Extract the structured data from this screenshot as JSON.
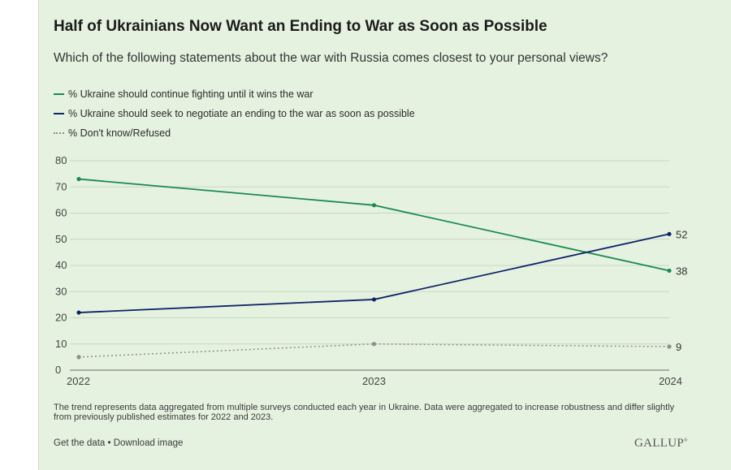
{
  "header": {
    "title": "Half of Ukrainians Now Want an Ending to War as Soon as Possible",
    "subtitle": "Which of the following statements about the war with Russia comes closest to your personal views?"
  },
  "footer": {
    "note": "The trend represents data aggregated from multiple surveys conducted each year in Ukraine. Data were aggregated to increase robustness and differ slightly from previously published estimates for 2022 and 2023.",
    "get_data": "Get the data",
    "separator": " • ",
    "download": "Download image",
    "logo": "GALLUP"
  },
  "chart_data": {
    "type": "line",
    "x": [
      "2022",
      "2023",
      "2024"
    ],
    "ylim": [
      0,
      80
    ],
    "yticks": [
      0,
      10,
      20,
      30,
      40,
      50,
      60,
      70,
      80
    ],
    "grid": true,
    "legend_position": "top-left",
    "series": [
      {
        "name": "% Ukraine should continue fighting until it wins the war",
        "values": [
          73,
          63,
          38
        ],
        "color": "#1a8a4f",
        "style": "solid",
        "end_label": "38"
      },
      {
        "name": "% Ukraine should seek to negotiate an ending to the war as soon as possible",
        "values": [
          22,
          27,
          52
        ],
        "color": "#0e2468",
        "style": "solid",
        "end_label": "52"
      },
      {
        "name": "% Don't know/Refused",
        "values": [
          5,
          10,
          9
        ],
        "color": "#8e8e8e",
        "style": "dotted",
        "end_label": "9"
      }
    ]
  }
}
